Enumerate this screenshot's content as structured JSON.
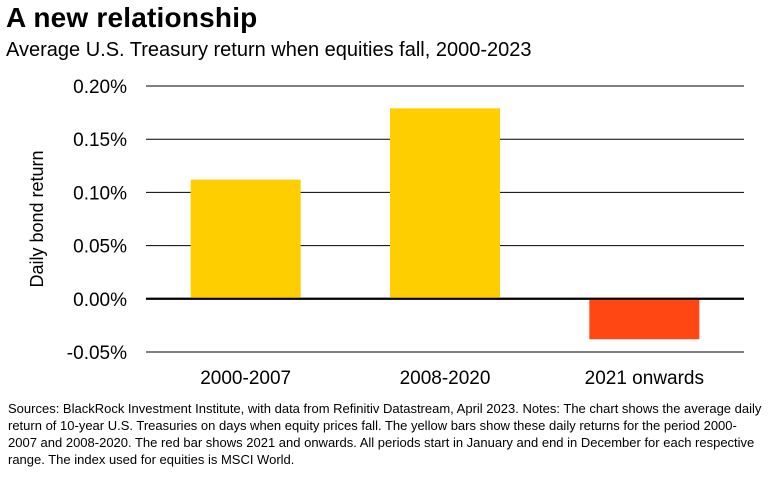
{
  "title": "A new relationship",
  "subtitle": "Average U.S. Treasury return when equities fall, 2000-2023",
  "notes": "Sources: BlackRock Investment Institute, with data from Refinitiv Datastream, April 2023. Notes: The chart shows the average daily return of 10-year U.S. Treasuries on days when equity prices fall. The yellow bars show these daily returns for the period 2000-2007 and 2008-2020. The red bar shows 2021 and onwards. All periods start in January and end in December for each respective range. The index used for equities is MSCI World.",
  "chart_data": {
    "type": "bar",
    "title": "A new relationship",
    "subtitle": "Average U.S. Treasury return when equities fall, 2000-2023",
    "xlabel": "",
    "ylabel": "Daily bond return",
    "categories": [
      "2000-2007",
      "2008-2020",
      "2021 onwards"
    ],
    "values": [
      0.112,
      0.179,
      -0.038
    ],
    "unit": "%",
    "bar_colors": [
      "#FFCE00",
      "#FFCE00",
      "#FF4713"
    ],
    "ylim": [
      -0.05,
      0.2
    ],
    "yticks": [
      0.2,
      0.15,
      0.1,
      0.05,
      0.0,
      -0.05
    ],
    "ytick_labels": [
      "0.20%",
      "0.15%",
      "0.10%",
      "0.05%",
      "0.00%",
      "-0.05%"
    ],
    "grid": true,
    "legend": "none"
  }
}
